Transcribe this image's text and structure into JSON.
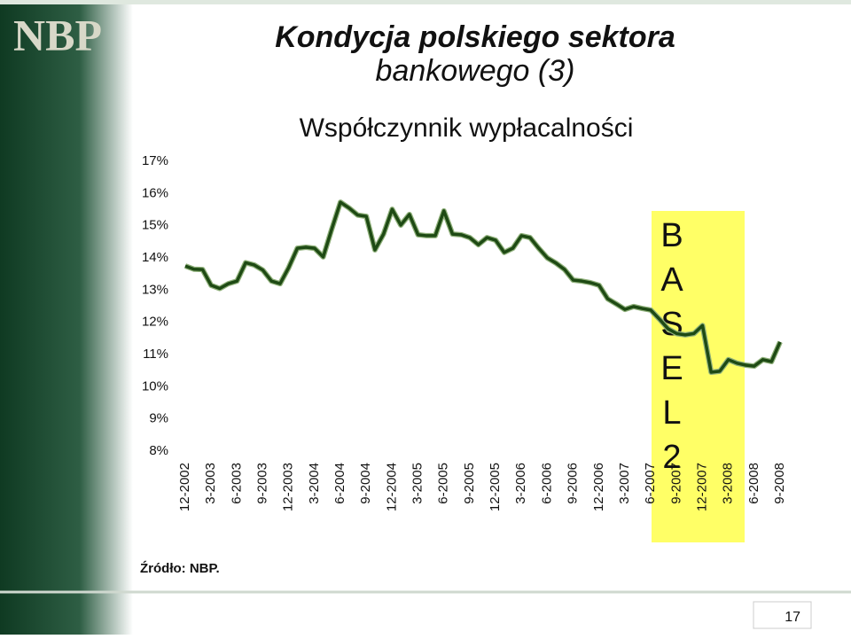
{
  "logo": "NBP",
  "slide_title": [
    "Kondycja polskiego sektora",
    "bankowego (3)"
  ],
  "source": "Źródło: NBP.",
  "page_number": "17",
  "chart_data": {
    "type": "line",
    "title": "Współczynnik wypłacalności",
    "annotation": [
      "B",
      "A",
      "S",
      "E",
      "L",
      "2"
    ],
    "categories": [
      "12-2002",
      null,
      null,
      "3-2003",
      null,
      null,
      "6-2003",
      null,
      null,
      "9-2003",
      null,
      null,
      "12-2003",
      null,
      null,
      "3-2004",
      null,
      null,
      "6-2004",
      null,
      null,
      "9-2004",
      null,
      null,
      "12-2004",
      null,
      null,
      "3-2005",
      null,
      null,
      "6-2005",
      null,
      null,
      "9-2005",
      null,
      null,
      "12-2005",
      null,
      null,
      "3-2006",
      null,
      null,
      "6-2006",
      null,
      null,
      "9-2006",
      null,
      null,
      "12-2006",
      null,
      null,
      "3-2007",
      null,
      null,
      "6-2007",
      null,
      null,
      "9-2007",
      null,
      null,
      "12-2007",
      null,
      null,
      "3-2008",
      null,
      null,
      "6-2008",
      null,
      null,
      "9-2008"
    ],
    "values": [
      13.75,
      13.65,
      13.64,
      13.15,
      13.05,
      13.2,
      13.28,
      13.85,
      13.78,
      13.62,
      13.28,
      13.2,
      13.7,
      14.3,
      14.33,
      14.3,
      14.03,
      14.9,
      15.73,
      15.55,
      15.33,
      15.29,
      14.25,
      14.74,
      15.51,
      15.02,
      15.35,
      14.72,
      14.69,
      14.69,
      15.46,
      14.74,
      14.72,
      14.63,
      14.41,
      14.63,
      14.55,
      14.17,
      14.3,
      14.69,
      14.63,
      14.3,
      14.0,
      13.84,
      13.64,
      13.31,
      13.28,
      13.23,
      13.15,
      12.73,
      12.57,
      12.4,
      12.49,
      12.43,
      12.38,
      12.1,
      11.8,
      11.65,
      11.61,
      11.65,
      11.9,
      10.45,
      10.48,
      10.84,
      10.73,
      10.67,
      10.64,
      10.84,
      10.78,
      11.39
    ],
    "color": "#1e4a14",
    "highlight_color": "#ffff66",
    "ylim": [
      8,
      17
    ],
    "yticks": [
      {
        "value": 8,
        "label": "8%"
      },
      {
        "value": 9,
        "label": "9%"
      },
      {
        "value": 10,
        "label": "10%"
      },
      {
        "value": 11,
        "label": "11%"
      },
      {
        "value": 12,
        "label": "12%"
      },
      {
        "value": 13,
        "label": "13%"
      },
      {
        "value": 14,
        "label": "14%"
      },
      {
        "value": 15,
        "label": "15%"
      },
      {
        "value": 16,
        "label": "16%"
      },
      {
        "value": 17,
        "label": "17%"
      }
    ],
    "grid": false
  }
}
